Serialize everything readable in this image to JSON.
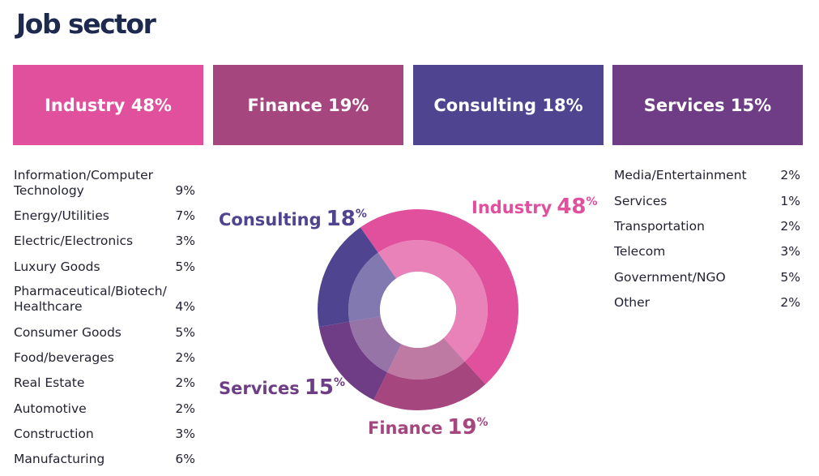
{
  "page": {
    "title": "Job sector"
  },
  "colors": {
    "industry": "#e0509d",
    "finance": "#a6467f",
    "consulting": "#4f4490",
    "services": "#6e3d85",
    "title": "#1e2a4d"
  },
  "categories": [
    {
      "label": "Industry",
      "pct": "48%",
      "color": "#e0509d"
    },
    {
      "label": "Finance",
      "pct": "19%",
      "color": "#a6467f"
    },
    {
      "label": "Consulting",
      "pct": "18%",
      "color": "#4f4490"
    },
    {
      "label": "Services",
      "pct": "15%",
      "color": "#6e3d85"
    }
  ],
  "left_list": [
    {
      "name": "Information/Computer Technology",
      "pct": "9%"
    },
    {
      "name": "Energy/Utilities",
      "pct": "7%"
    },
    {
      "name": "Electric/Electronics",
      "pct": "3%"
    },
    {
      "name": "Luxury Goods",
      "pct": "5%"
    },
    {
      "name": "Pharmaceutical/Biotech/ Healthcare",
      "pct": "4%"
    },
    {
      "name": "Consumer Goods",
      "pct": "5%"
    },
    {
      "name": "Food/beverages",
      "pct": "2%"
    },
    {
      "name": "Real Estate",
      "pct": "2%"
    },
    {
      "name": "Automotive",
      "pct": "2%"
    },
    {
      "name": "Construction",
      "pct": "3%"
    },
    {
      "name": "Manufacturing",
      "pct": "6%"
    }
  ],
  "right_list": [
    {
      "name": "Media/Entertainment",
      "pct": "2%"
    },
    {
      "name": "Services",
      "pct": "1%"
    },
    {
      "name": "Transportation",
      "pct": "2%"
    },
    {
      "name": "Telecom",
      "pct": "3%"
    },
    {
      "name": "Government/NGO",
      "pct": "5%"
    },
    {
      "name": "Other",
      "pct": "2%"
    }
  ],
  "chart_data": {
    "type": "pie",
    "title": "Job sector",
    "series": [
      {
        "name": "Industry",
        "value": 48,
        "color": "#e0509d"
      },
      {
        "name": "Finance",
        "value": 19,
        "color": "#a6467f"
      },
      {
        "name": "Services",
        "value": 15,
        "color": "#6e3d85"
      },
      {
        "name": "Consulting",
        "value": 18,
        "color": "#4f4490"
      }
    ],
    "labels": [
      {
        "name": "Consulting",
        "value": "18",
        "unit": "%"
      },
      {
        "name": "Industry",
        "value": "48",
        "unit": "%"
      },
      {
        "name": "Services",
        "value": "15",
        "unit": "%"
      },
      {
        "name": "Finance",
        "value": "19",
        "unit": "%"
      }
    ]
  }
}
